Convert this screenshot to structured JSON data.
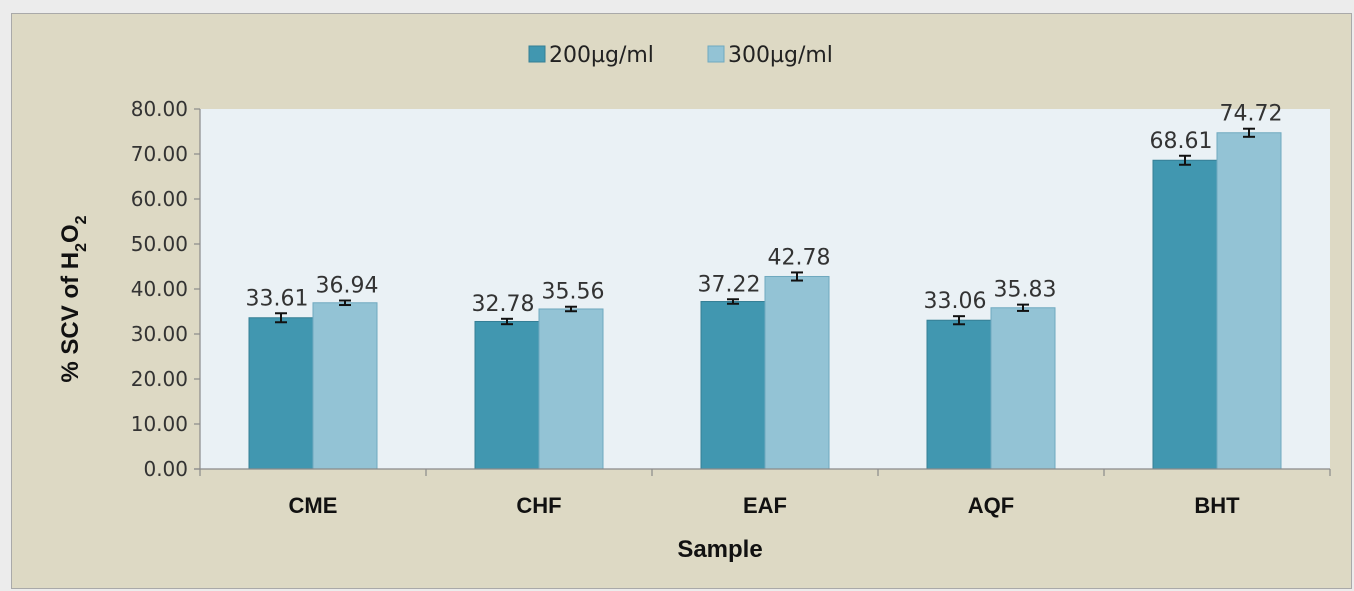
{
  "chart_data": {
    "type": "bar",
    "categories": [
      "CME",
      "CHF",
      "EAF",
      "AQF",
      "BHT"
    ],
    "series": [
      {
        "name": "200µg/ml",
        "values": [
          33.61,
          32.78,
          37.22,
          33.06,
          68.61
        ],
        "errors": [
          1.0,
          0.6,
          0.5,
          0.9,
          1.0
        ],
        "color": "#4197b0"
      },
      {
        "name": "300µg/ml",
        "values": [
          36.94,
          35.56,
          42.78,
          35.83,
          74.72
        ],
        "errors": [
          0.5,
          0.5,
          0.9,
          0.7,
          0.9
        ],
        "color": "#93c3d5"
      }
    ],
    "data_labels": [
      [
        "33.61",
        "32.78",
        "37.22",
        "33.06",
        "68.61"
      ],
      [
        "36.94",
        "35.56",
        "42.78",
        "35.83",
        "74.72"
      ]
    ],
    "title": "",
    "xlabel": "Sample",
    "ylabel_parts": [
      "% SCV of H",
      "2",
      "O",
      "2"
    ],
    "ylim": [
      0,
      80
    ],
    "yticks": [
      0,
      10,
      20,
      30,
      40,
      50,
      60,
      70,
      80
    ],
    "ytick_labels": [
      "0.00",
      "10.00",
      "20.00",
      "30.00",
      "40.00",
      "50.00",
      "60.00",
      "70.00",
      "80.00"
    ],
    "legend_position": "top-center",
    "grid": false,
    "plot_background": "#eaf1f5",
    "chart_background": "#ddd9c4"
  }
}
